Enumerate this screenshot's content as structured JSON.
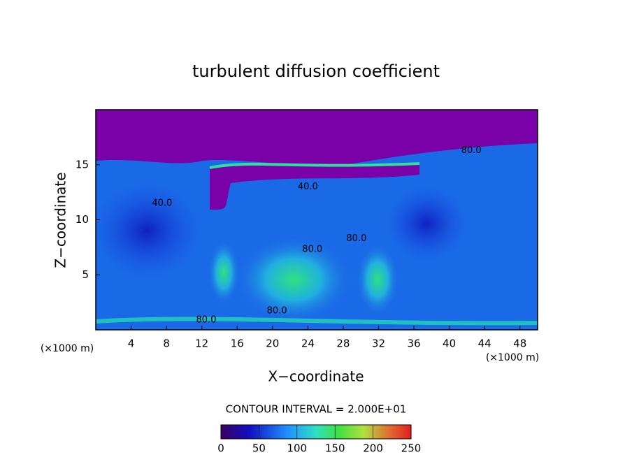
{
  "chart_data": {
    "type": "contour",
    "title": "turbulent diffusion coefficient",
    "xlabel": "X−coordinate",
    "ylabel": "Z−coordinate",
    "x_unit": "(×1000 m)",
    "xlim": [
      0,
      50
    ],
    "ylim": [
      0,
      20
    ],
    "xticks": [
      4,
      8,
      12,
      16,
      20,
      24,
      28,
      32,
      36,
      40,
      44,
      48
    ],
    "yticks": [
      5,
      10,
      15
    ],
    "contour_interval": "CONTOUR INTERVAL = 2.000E+01",
    "colorbar_lim": [
      0,
      250
    ],
    "colorbar_ticks": [
      0,
      50,
      100,
      150,
      200,
      250
    ],
    "contour_labels": [
      {
        "label": "40.0",
        "x": 7.5,
        "y": 11.5
      },
      {
        "label": "40.0",
        "x": 24,
        "y": 13
      },
      {
        "label": "80.0",
        "x": 24.5,
        "y": 7.3
      },
      {
        "label": "80.0",
        "x": 29.5,
        "y": 8.3
      },
      {
        "label": "80.0",
        "x": 12.5,
        "y": 0.9
      },
      {
        "label": "80.0",
        "x": 20.5,
        "y": 1.7
      },
      {
        "label": "80.0",
        "x": 42.5,
        "y": 16.3
      }
    ]
  }
}
